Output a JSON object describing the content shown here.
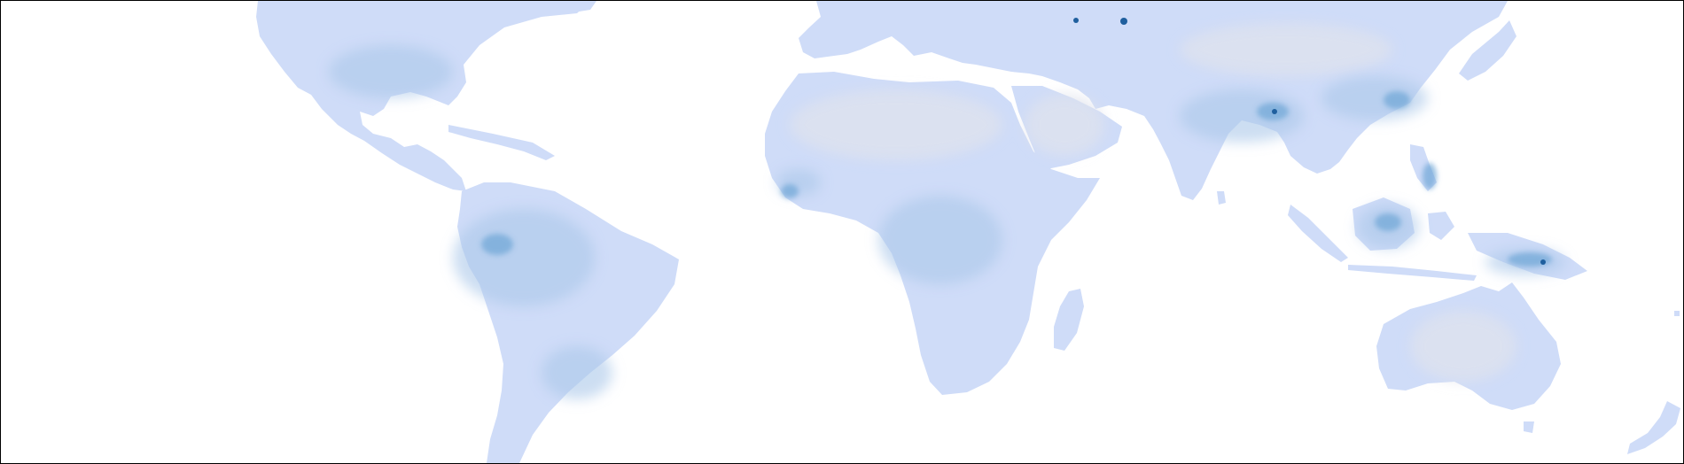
{
  "map": {
    "projection": "equirectangular",
    "colors": {
      "frame": "#000000",
      "ocean": "#ffffff",
      "land_base": "#cfdcf8",
      "land_dry": "#dfe2ec",
      "land_medium": "#aac8ea",
      "land_wet": "#6ea5d6",
      "land_hotspot": "#1f5f9e"
    }
  }
}
